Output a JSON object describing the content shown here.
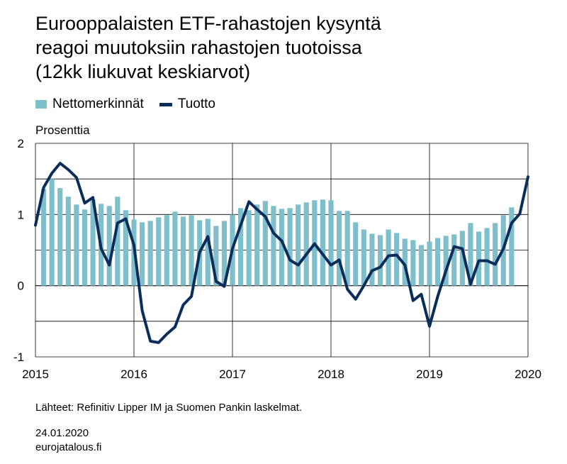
{
  "title_lines": [
    "Eurooppalaisten ETF-rahastojen kysyntä",
    "reagoi muutoksiin rahastojen tuotoissa",
    "(12kk liukuvat keskiarvot)"
  ],
  "legend": {
    "bars_label": "Nettomerkinnät",
    "line_label": "Tuotto"
  },
  "unit_label": "Prosenttia",
  "source": "Lähteet: Refinitiv Lipper IM ja Suomen Pankin laskelmat.",
  "date": "24.01.2020",
  "site": "eurojatalous.fi",
  "colors": {
    "bars": "#7fbfcb",
    "line": "#0b2d5c",
    "grid": "#000000"
  },
  "chart_data": {
    "type": "bar+line",
    "title": "Eurooppalaisten ETF-rahastojen kysyntä reagoi muutoksiin rahastojen tuotoissa (12kk liukuvat keskiarvot)",
    "ylabel": "Prosenttia",
    "ylim": [
      -1,
      2
    ],
    "yticks": [
      -1,
      0,
      1,
      2
    ],
    "xlim": [
      2015,
      2020
    ],
    "xticks": [
      2015,
      2016,
      2017,
      2018,
      2019,
      2020
    ],
    "grid": true,
    "legend_position": "top-left",
    "series": [
      {
        "name": "Nettomerkinnät",
        "kind": "bar",
        "frequency": "monthly",
        "start": "2015-02",
        "values": [
          1.36,
          1.5,
          1.37,
          1.25,
          1.14,
          1.07,
          1.21,
          1.15,
          1.12,
          1.25,
          1.06,
          0.93,
          0.89,
          0.91,
          0.96,
          0.99,
          1.04,
          0.97,
          0.99,
          0.92,
          0.94,
          0.84,
          0.91,
          1.0,
          1.09,
          1.06,
          1.14,
          1.19,
          1.12,
          1.08,
          1.09,
          1.14,
          1.17,
          1.2,
          1.21,
          1.2,
          1.05,
          1.05,
          0.89,
          0.79,
          0.73,
          0.71,
          0.79,
          0.74,
          0.66,
          0.64,
          0.57,
          0.62,
          0.67,
          0.7,
          0.72,
          0.77,
          0.88,
          0.76,
          0.81,
          0.88,
          0.99,
          1.1
        ]
      },
      {
        "name": "Tuotto",
        "kind": "line",
        "frequency": "monthly",
        "start": "2015-01",
        "values": [
          0.85,
          1.38,
          1.58,
          1.72,
          1.63,
          1.52,
          1.16,
          1.24,
          0.52,
          0.29,
          0.88,
          0.94,
          0.57,
          -0.35,
          -0.78,
          -0.8,
          -0.68,
          -0.58,
          -0.27,
          -0.15,
          0.47,
          0.69,
          0.06,
          -0.01,
          0.52,
          0.85,
          1.18,
          1.07,
          0.97,
          0.74,
          0.63,
          0.36,
          0.29,
          0.44,
          0.59,
          0.44,
          0.29,
          0.36,
          -0.05,
          -0.19,
          0.0,
          0.21,
          0.26,
          0.42,
          0.43,
          0.29,
          -0.21,
          -0.12,
          -0.57,
          -0.15,
          0.21,
          0.55,
          0.52,
          0.02,
          0.35,
          0.35,
          0.3,
          0.52,
          0.88,
          1.01,
          1.53
        ]
      }
    ]
  }
}
